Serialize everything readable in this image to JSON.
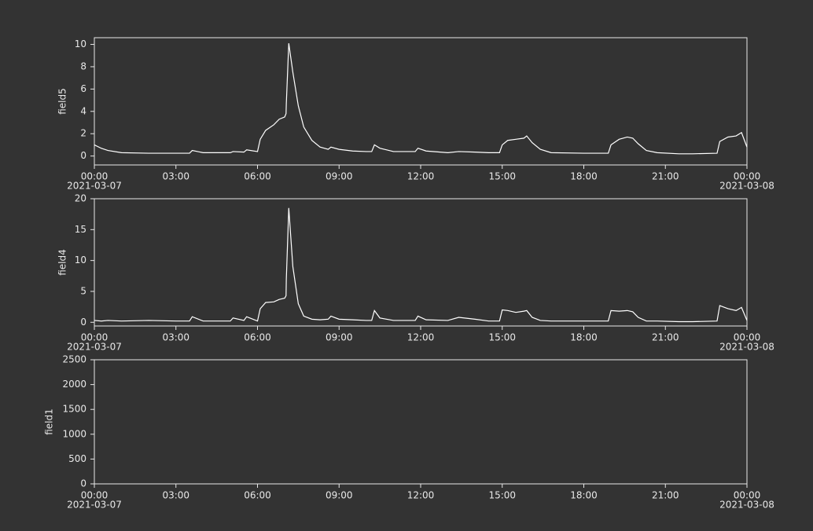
{
  "chart_data": [
    {
      "type": "line",
      "ylabel": "field5",
      "x": [
        0,
        0.25,
        0.5,
        1,
        2,
        3,
        3.5,
        3.6,
        4,
        5,
        5.1,
        5.5,
        5.6,
        6,
        6.1,
        6.3,
        6.6,
        6.8,
        7,
        7.05,
        7.06,
        7.15,
        7.3,
        7.5,
        7.7,
        8,
        8.3,
        8.6,
        8.7,
        9,
        9.5,
        10,
        10.2,
        10.3,
        10.5,
        11,
        11.8,
        11.9,
        12.2,
        13,
        13.4,
        14,
        14.5,
        14.9,
        15,
        15.2,
        15.5,
        15.8,
        15.9,
        16.1,
        16.4,
        16.8,
        18,
        18.9,
        19,
        19.3,
        19.6,
        19.8,
        20,
        20.3,
        20.7,
        21.5,
        22,
        22.9,
        23,
        23.3,
        23.6,
        23.8,
        24
      ],
      "series": [
        {
          "color": "#ffffff",
          "values": [
            1.0,
            0.7,
            0.5,
            0.3,
            0.25,
            0.25,
            0.25,
            0.5,
            0.3,
            0.3,
            0.4,
            0.35,
            0.55,
            0.4,
            1.5,
            2.3,
            2.8,
            3.3,
            3.5,
            3.8,
            4.7,
            10.1,
            7.5,
            4.5,
            2.6,
            1.4,
            0.8,
            0.6,
            0.8,
            0.6,
            0.45,
            0.4,
            0.4,
            1.0,
            0.7,
            0.4,
            0.4,
            0.7,
            0.45,
            0.3,
            0.4,
            0.35,
            0.3,
            0.3,
            1.0,
            1.4,
            1.5,
            1.6,
            1.8,
            1.2,
            0.6,
            0.3,
            0.25,
            0.25,
            1.0,
            1.5,
            1.7,
            1.6,
            1.1,
            0.5,
            0.3,
            0.2,
            0.2,
            0.25,
            1.3,
            1.7,
            1.8,
            2.1,
            0.8
          ]
        }
      ],
      "xlim": [
        0,
        24
      ],
      "xticks": [
        {
          "value": 0,
          "label": "00:00"
        },
        {
          "value": 3,
          "label": "03:00"
        },
        {
          "value": 6,
          "label": "06:00"
        },
        {
          "value": 9,
          "label": "09:00"
        },
        {
          "value": 12,
          "label": "12:00"
        },
        {
          "value": 15,
          "label": "15:00"
        },
        {
          "value": 18,
          "label": "18:00"
        },
        {
          "value": 21,
          "label": "21:00"
        },
        {
          "value": 24,
          "label": "00:00"
        }
      ],
      "xtick_dates": [
        {
          "value": 0,
          "label": "2021-03-07"
        },
        {
          "value": 24,
          "label": "2021-03-08"
        }
      ],
      "ylim": [
        -0.8,
        10.6
      ],
      "yticks": [
        0,
        2,
        4,
        6,
        8,
        10
      ]
    },
    {
      "type": "line",
      "ylabel": "field4",
      "x": [
        0,
        0.25,
        0.5,
        1,
        2,
        3,
        3.5,
        3.6,
        4,
        5,
        5.1,
        5.5,
        5.6,
        6,
        6.1,
        6.3,
        6.6,
        6.8,
        7,
        7.05,
        7.06,
        7.15,
        7.3,
        7.5,
        7.7,
        8,
        8.3,
        8.6,
        8.7,
        9,
        9.5,
        10,
        10.2,
        10.3,
        10.5,
        11,
        11.8,
        11.9,
        12.2,
        13,
        13.4,
        14,
        14.5,
        14.9,
        15,
        15.2,
        15.5,
        15.8,
        15.9,
        16.1,
        16.4,
        16.8,
        18,
        18.9,
        19,
        19.3,
        19.6,
        19.8,
        20,
        20.3,
        20.7,
        21.5,
        22,
        22.9,
        23,
        23.3,
        23.6,
        23.8,
        24
      ],
      "series": [
        {
          "color": "#ffffff",
          "values": [
            0.3,
            0.2,
            0.3,
            0.2,
            0.3,
            0.2,
            0.2,
            0.9,
            0.2,
            0.2,
            0.7,
            0.3,
            0.9,
            0.2,
            2.2,
            3.2,
            3.3,
            3.7,
            3.9,
            4.3,
            7,
            18.5,
            9,
            3,
            1,
            0.5,
            0.4,
            0.5,
            1.0,
            0.5,
            0.4,
            0.3,
            0.3,
            1.9,
            0.7,
            0.3,
            0.3,
            1.0,
            0.4,
            0.3,
            0.8,
            0.5,
            0.2,
            0.2,
            2.0,
            1.9,
            1.6,
            1.8,
            1.9,
            0.8,
            0.3,
            0.2,
            0.2,
            0.2,
            1.9,
            1.8,
            1.9,
            1.7,
            0.8,
            0.2,
            0.2,
            0.1,
            0.1,
            0.2,
            2.7,
            2.2,
            1.9,
            2.4,
            0.3
          ]
        }
      ],
      "xlim": [
        0,
        24
      ],
      "xticks": [
        {
          "value": 0,
          "label": "00:00"
        },
        {
          "value": 3,
          "label": "03:00"
        },
        {
          "value": 6,
          "label": "06:00"
        },
        {
          "value": 9,
          "label": "09:00"
        },
        {
          "value": 12,
          "label": "12:00"
        },
        {
          "value": 15,
          "label": "15:00"
        },
        {
          "value": 18,
          "label": "18:00"
        },
        {
          "value": 21,
          "label": "21:00"
        },
        {
          "value": 24,
          "label": "00:00"
        }
      ],
      "xtick_dates": [
        {
          "value": 0,
          "label": "2021-03-07"
        },
        {
          "value": 24,
          "label": "2021-03-08"
        }
      ],
      "ylim": [
        -0.6,
        20
      ],
      "yticks": [
        0,
        5,
        10,
        15,
        20
      ]
    },
    {
      "type": "line",
      "ylabel": "field1",
      "xlim": [
        0,
        24
      ],
      "xticks": [
        {
          "value": 0,
          "label": "00:00"
        },
        {
          "value": 3,
          "label": "03:00"
        },
        {
          "value": 6,
          "label": "06:00"
        },
        {
          "value": 9,
          "label": "09:00"
        },
        {
          "value": 12,
          "label": "12:00"
        },
        {
          "value": 15,
          "label": "15:00"
        },
        {
          "value": 18,
          "label": "18:00"
        },
        {
          "value": 21,
          "label": "21:00"
        },
        {
          "value": 24,
          "label": "00:00"
        }
      ],
      "xtick_dates": [
        {
          "value": 0,
          "label": "2021-03-07"
        },
        {
          "value": 24,
          "label": "2021-03-08"
        }
      ],
      "ylim": [
        0,
        2500
      ],
      "yticks": [
        0,
        500,
        1000,
        1500,
        2000,
        2500
      ]
    }
  ]
}
